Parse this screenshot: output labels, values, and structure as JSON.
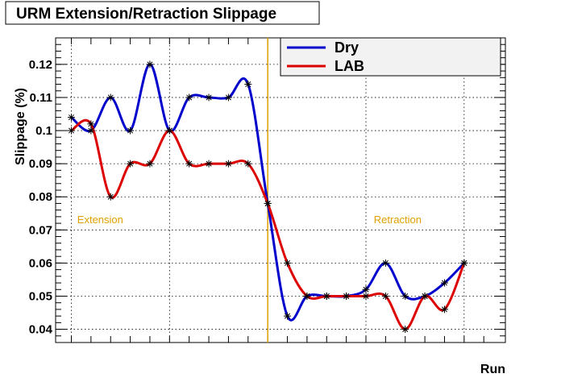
{
  "chart_data": {
    "type": "line",
    "title": "URM Extension/Retraction Slippage",
    "xlabel": "Run",
    "ylabel": "Slippage (%)",
    "ylim": [
      0.036,
      0.128
    ],
    "yticks": [
      0.04,
      0.05,
      0.06,
      0.07,
      0.08,
      0.09,
      0.1,
      0.11,
      0.12
    ],
    "ytick_labels": [
      "0.04",
      "0.05",
      "0.06",
      "0.07",
      "0.08",
      "0.09",
      "0.1",
      "0.11",
      "0.12"
    ],
    "xlim": [
      -0.8,
      22.1
    ],
    "xgrid": [
      0,
      5,
      10,
      15,
      20
    ],
    "grid": true,
    "legend_position": "top-right",
    "divider_x": 10,
    "divider_color": "#e0a000",
    "x": [
      0,
      1,
      2,
      3,
      4,
      5,
      6,
      7,
      8,
      9,
      10,
      11,
      12,
      13,
      14,
      15,
      16,
      17,
      18,
      19,
      20
    ],
    "series": [
      {
        "name": "Dry",
        "color": "#0000cc",
        "values": [
          0.104,
          0.1,
          0.11,
          0.1,
          0.12,
          0.1,
          0.11,
          0.11,
          0.11,
          0.114,
          0.078,
          0.044,
          0.05,
          0.05,
          0.05,
          0.052,
          0.06,
          0.05,
          0.05,
          0.054,
          0.06
        ]
      },
      {
        "name": "LAB",
        "color": "#dd0000",
        "values": [
          0.1,
          0.102,
          0.08,
          0.09,
          0.09,
          0.1,
          0.09,
          0.09,
          0.09,
          0.09,
          0.078,
          0.06,
          0.05,
          0.05,
          0.05,
          0.05,
          0.05,
          0.04,
          0.05,
          0.046,
          0.06
        ]
      }
    ],
    "annotations": [
      {
        "text": "Extension",
        "x": 0.3,
        "y": 0.072
      },
      {
        "text": "Retraction",
        "x": 15.4,
        "y": 0.072
      }
    ]
  }
}
